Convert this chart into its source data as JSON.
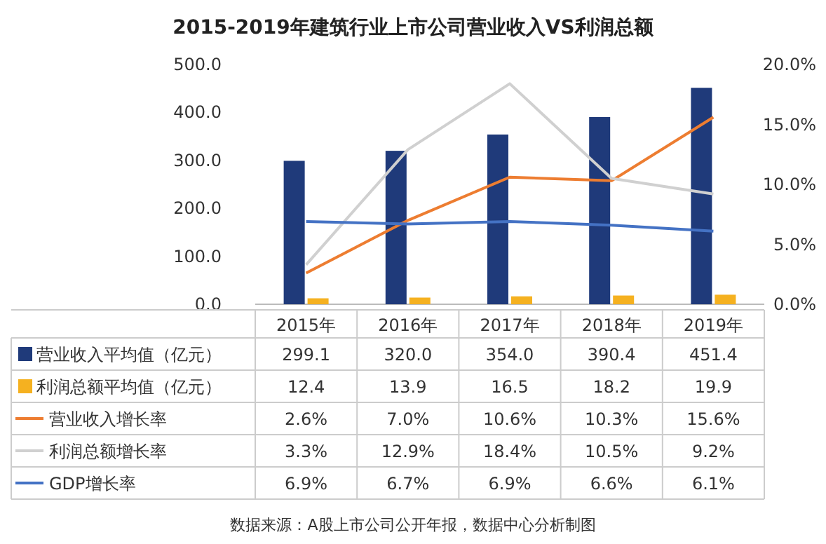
{
  "chart_data": {
    "type": "bar",
    "title": "2015-2019年建筑行业上市公司营业收入VS利润总额",
    "categories": [
      "2015年",
      "2016年",
      "2017年",
      "2018年",
      "2019年"
    ],
    "series": [
      {
        "name": "营业收入平均值（亿元）",
        "color": "#1f3a7a",
        "values": [
          299.1,
          320.0,
          354.0,
          390.4,
          451.4
        ],
        "value_labels": [
          "299.1",
          "320.0",
          "354.0",
          "390.4",
          "451.4"
        ]
      },
      {
        "name": "利润总额平均值（亿元）",
        "color": "#f5b120",
        "values": [
          12.4,
          13.9,
          16.5,
          18.2,
          19.9
        ],
        "value_labels": [
          "12.4",
          "13.9",
          "16.5",
          "18.2",
          "19.9"
        ]
      },
      {
        "name": "营业收入增长率",
        "type": "line",
        "axis": "y2",
        "color": "#ed7d31",
        "values": [
          2.6,
          7.0,
          10.6,
          10.3,
          15.6
        ],
        "value_labels": [
          "2.6%",
          "7.0%",
          "10.6%",
          "10.3%",
          "15.6%"
        ]
      },
      {
        "name": "利润总额增长率",
        "type": "line",
        "axis": "y2",
        "color": "#d0d0d0",
        "values": [
          3.3,
          12.9,
          18.4,
          10.5,
          9.2
        ],
        "value_labels": [
          "3.3%",
          "12.9%",
          "18.4%",
          "10.5%",
          "9.2%"
        ]
      },
      {
        "name": "GDP增长率",
        "type": "line",
        "axis": "y2",
        "color": "#4472c4",
        "values": [
          6.9,
          6.7,
          6.9,
          6.6,
          6.1
        ],
        "value_labels": [
          "6.9%",
          "6.7%",
          "6.9%",
          "6.6%",
          "6.1%"
        ]
      }
    ],
    "ylim": [
      0,
      500
    ],
    "yticks": [
      {
        "value": 0,
        "label": "0.0"
      },
      {
        "value": 100,
        "label": "100.0"
      },
      {
        "value": 200,
        "label": "200.0"
      },
      {
        "value": 300,
        "label": "300.0"
      },
      {
        "value": 400,
        "label": "400.0"
      },
      {
        "value": 500,
        "label": "500.0"
      }
    ],
    "y2lim": [
      0,
      20
    ],
    "y2ticks": [
      {
        "value": 0,
        "label": "0.0%"
      },
      {
        "value": 5,
        "label": "5.0%"
      },
      {
        "value": 10,
        "label": "10.0%"
      },
      {
        "value": 15,
        "label": "15.0%"
      },
      {
        "value": 20,
        "label": "20.0%"
      }
    ],
    "legend": "bottom",
    "marker": "none",
    "line_style": "solid",
    "annotations": [
      "数据来源：A股上市公司公开年报，数据中心分析制图"
    ]
  }
}
